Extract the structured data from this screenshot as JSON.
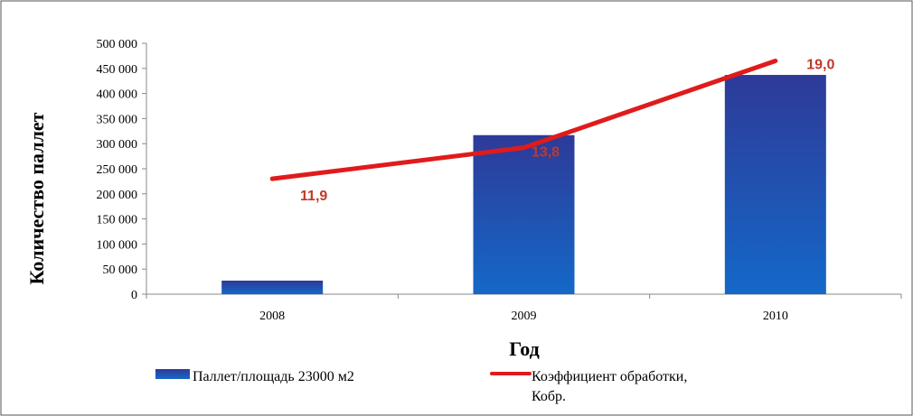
{
  "chart_data": {
    "type": "bar",
    "categories": [
      "2008",
      "2009",
      "2010"
    ],
    "xlabel": "Год",
    "ylabel": "Количество паллет",
    "ylim": [
      0,
      500000
    ],
    "yticks": [
      "0",
      "50 000",
      "100 000",
      "150 000",
      "200 000",
      "250 000",
      "300 000",
      "350 000",
      "400 000",
      "450 000",
      "500 000"
    ],
    "grid": false,
    "legend_position": "bottom",
    "series": [
      {
        "name": "Паллет/площадь 23000 м2",
        "type": "bar",
        "values": [
          27000,
          317000,
          437000
        ],
        "color": "#2a3f9c"
      },
      {
        "name": "Коэффициент обработки, Кобр.",
        "type": "line",
        "values": [
          11.9,
          13.8,
          19.0
        ],
        "labels": [
          "11,9",
          "13,8",
          "19,0"
        ],
        "plotted_on_primary_scale": [
          230000,
          292000,
          465000
        ],
        "color": "#e01b1b",
        "label_color": "#c0392b"
      }
    ]
  }
}
